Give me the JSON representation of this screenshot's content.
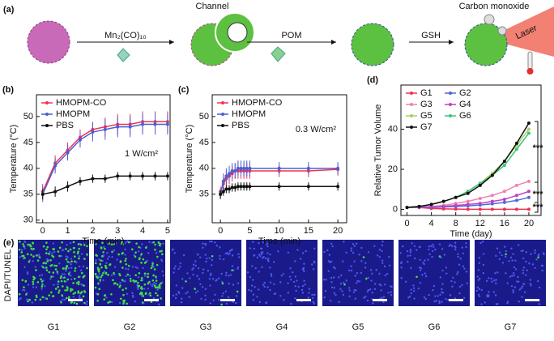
{
  "schematic": {
    "label": "(a)",
    "reagent": "Mn₂(CO)₁₀",
    "channel": "Channel",
    "step2": "POM",
    "step3": "GSH",
    "gas": "Carbon monoxide",
    "laser": "Laser"
  },
  "chart_data": [
    {
      "type": "line",
      "panel": "(b)",
      "xlabel": "Time (min)",
      "ylabel": "Temperature (°C)",
      "annotation": "1 W/cm²",
      "legend": "upper left",
      "x": [
        0,
        0.5,
        1,
        1.5,
        2,
        2.5,
        3,
        3.5,
        4,
        4.5,
        5
      ],
      "xlim": [
        -0.25,
        5.1
      ],
      "xticks": [
        0,
        1,
        2,
        3,
        4,
        5
      ],
      "ylim": [
        29.5,
        54.2
      ],
      "yticks": [
        30,
        35,
        40,
        45,
        50
      ],
      "series": [
        {
          "name": "HMOPM-CO",
          "color": "#f0325a",
          "values": [
            35.5,
            41,
            43.5,
            46,
            47.5,
            48,
            48.5,
            48.5,
            49,
            49,
            49
          ],
          "errors": [
            1.5,
            1.5,
            1.5,
            1.5,
            1.5,
            1.8,
            2,
            2,
            2,
            2,
            2
          ]
        },
        {
          "name": "HMOPM",
          "color": "#4a5fd0",
          "values": [
            35,
            40.5,
            43,
            45.5,
            47,
            47.5,
            48,
            48,
            48.5,
            48.5,
            48.5
          ],
          "errors": [
            1.5,
            1.5,
            1.5,
            1.5,
            1.8,
            2,
            2,
            2,
            2,
            2,
            2
          ]
        },
        {
          "name": "PBS",
          "color": "#111111",
          "values": [
            35,
            35.5,
            36.5,
            37.5,
            38,
            38,
            38.5,
            38.5,
            38.5,
            38.5,
            38.5
          ],
          "errors": [
            1,
            1,
            1,
            0.8,
            0.8,
            0.8,
            0.8,
            0.8,
            0.8,
            0.8,
            0.8
          ]
        }
      ]
    },
    {
      "type": "line",
      "panel": "(c)",
      "xlabel": "Time (min)",
      "ylabel": "Temperature (°C)",
      "annotation": "0.3 W/cm²",
      "legend": "upper left",
      "x": [
        0,
        0.5,
        1,
        1.5,
        2,
        2.5,
        3,
        3.5,
        4,
        4.5,
        5,
        10,
        15,
        20
      ],
      "xlim": [
        -1.4,
        21.5
      ],
      "xticks": [
        0,
        5,
        10,
        15,
        20
      ],
      "ylim": [
        29.5,
        54.2
      ],
      "yticks": [
        35,
        40,
        45,
        50
      ],
      "series": [
        {
          "name": "HMOPM-CO",
          "color": "#f0325a",
          "values": [
            35.5,
            37,
            38,
            38.5,
            39,
            39.5,
            39.5,
            39.5,
            39.5,
            39.5,
            39.5,
            39.5,
            39.5,
            39.8
          ],
          "errors": [
            1,
            1.2,
            1.5,
            1.5,
            1.5,
            1.5,
            1.5,
            1.5,
            1.5,
            1.5,
            1.5,
            1.2,
            1.2,
            1.2
          ]
        },
        {
          "name": "HMOPM",
          "color": "#4a5fd0",
          "values": [
            35,
            37.5,
            38.5,
            39,
            39.5,
            39.5,
            40,
            40,
            40,
            40,
            40,
            40,
            40,
            40
          ],
          "errors": [
            1,
            1.5,
            1.5,
            1.5,
            1.5,
            1.5,
            1.5,
            1.5,
            1.5,
            1.5,
            1.5,
            1.2,
            1.2,
            1.2
          ]
        },
        {
          "name": "PBS",
          "color": "#111111",
          "values": [
            35,
            35.5,
            36,
            36,
            36.3,
            36.3,
            36.5,
            36.5,
            36.5,
            36.5,
            36.5,
            36.5,
            36.5,
            36.5
          ],
          "errors": [
            0.8,
            0.8,
            0.8,
            0.8,
            0.8,
            0.8,
            0.8,
            0.8,
            0.8,
            0.8,
            0.8,
            0.8,
            0.8,
            0.8
          ]
        }
      ]
    },
    {
      "type": "line",
      "panel": "(d)",
      "xlabel": "Time (day)",
      "ylabel": "Relative Tumor Volume",
      "annotations": [
        "***",
        "***",
        "***"
      ],
      "legend": "upper left",
      "x": [
        0,
        2,
        4,
        6,
        8,
        10,
        12,
        14,
        16,
        18,
        20
      ],
      "xlim": [
        -1,
        22
      ],
      "xticks": [
        0,
        4,
        8,
        12,
        16,
        20
      ],
      "ylim": [
        -3,
        62
      ],
      "yticks": [
        0,
        20,
        40
      ],
      "series": [
        {
          "name": "G1",
          "color": "#f03050",
          "values": [
            1,
            1,
            0.5,
            0.3,
            0.2,
            0.1,
            0.1,
            0.1,
            0.1,
            0.1,
            0.1
          ]
        },
        {
          "name": "G2",
          "color": "#4a6ad8",
          "values": [
            1,
            1,
            1,
            1.2,
            1.5,
            1.8,
            2.2,
            2.8,
            3.5,
            4.5,
            6
          ]
        },
        {
          "name": "G3",
          "color": "#f080b0",
          "values": [
            1,
            1.2,
            1.5,
            2,
            3,
            4,
            5.5,
            7,
            9,
            12,
            14
          ]
        },
        {
          "name": "G4",
          "color": "#c040c0",
          "values": [
            1,
            1,
            1.3,
            1.5,
            2,
            2.5,
            3,
            4,
            5,
            7,
            9
          ]
        },
        {
          "name": "G5",
          "color": "#a8d060",
          "values": [
            1,
            1.5,
            2.5,
            4,
            6,
            9,
            13,
            18,
            24,
            32,
            40
          ]
        },
        {
          "name": "G6",
          "color": "#40c080",
          "values": [
            1,
            1.5,
            2.5,
            4,
            6,
            9,
            13,
            17,
            22,
            30,
            38
          ]
        },
        {
          "name": "G7",
          "color": "#111111",
          "values": [
            1,
            1.5,
            2.5,
            4,
            6,
            8,
            12,
            17,
            24,
            33,
            43
          ]
        }
      ]
    }
  ],
  "panel_e": {
    "label": "(e)",
    "ylabel": "DAPI/TUNEL",
    "labels": [
      "G1",
      "G2",
      "G3",
      "G4",
      "G5",
      "G6",
      "G7"
    ]
  }
}
